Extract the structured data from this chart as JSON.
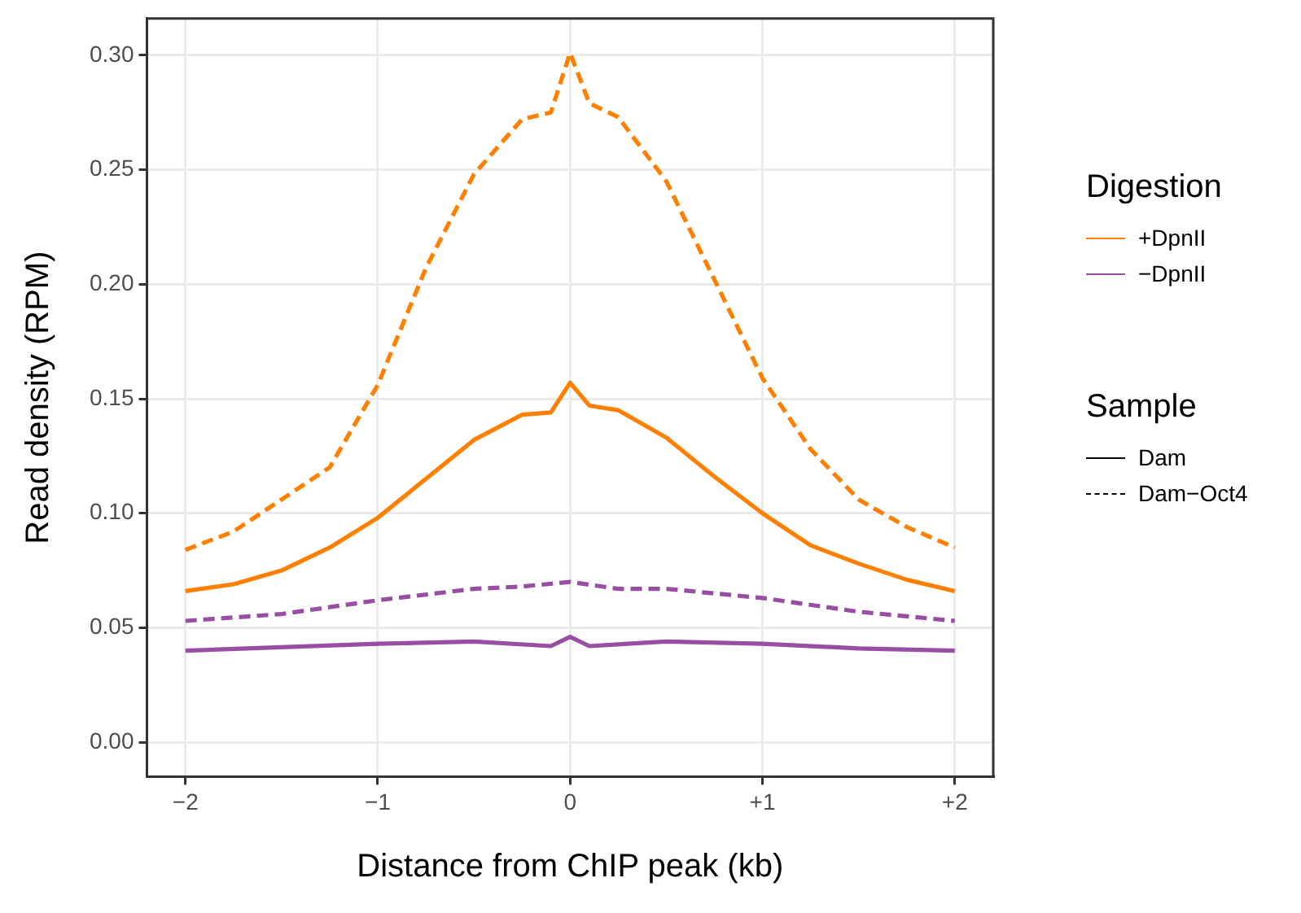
{
  "chart_data": {
    "type": "line",
    "xlabel": "Distance from ChIP peak (kb)",
    "ylabel": "Read density (RPM)",
    "legend_title": "Digestion",
    "xlim": [
      -2.2,
      2.2
    ],
    "xticks": [
      {
        "value": -2,
        "label": "−2"
      },
      {
        "value": -1,
        "label": "−1"
      },
      0,
      {
        "value": 1,
        "label": "+1"
      },
      {
        "value": 2,
        "label": "+2"
      }
    ],
    "ylim": [
      -0.015,
      0.316
    ],
    "yticks": [
      {
        "value": 0,
        "label": "0.00"
      },
      0.05,
      {
        "value": 0.1,
        "label": "0.10"
      },
      0.15,
      {
        "value": 0.2,
        "label": "0.20"
      },
      0.25,
      {
        "value": 0.3,
        "label": "0.30"
      }
    ],
    "grid": true,
    "legend": "right",
    "marker": "none",
    "annotations": [
      "Sample",
      "Dam",
      "Dam−Oct4"
    ],
    "series": [
      {
        "name": "+DpnII",
        "color": "#ff7f00",
        "line_style": "solid",
        "x": [
          -2,
          -1.75,
          -1.5,
          -1.25,
          -1,
          -0.75,
          -0.5,
          -0.25,
          -0.1,
          0,
          0.1,
          0.25,
          0.5,
          0.75,
          1,
          1.25,
          1.5,
          1.75,
          2
        ],
        "values": [
          0.066,
          0.069,
          0.075,
          0.085,
          0.098,
          0.115,
          0.132,
          0.143,
          0.144,
          0.157,
          0.147,
          0.145,
          0.133,
          0.116,
          0.1,
          0.086,
          0.078,
          0.071,
          0.066
        ]
      },
      {
        "color": "#ff7f00",
        "line_style": "dashed",
        "x": [
          -2,
          -1.75,
          -1.5,
          -1.25,
          -1,
          -0.75,
          -0.5,
          -0.25,
          -0.1,
          0,
          0.1,
          0.25,
          0.5,
          0.75,
          1,
          1.25,
          1.5,
          1.75,
          2
        ],
        "values": [
          0.084,
          0.092,
          0.106,
          0.12,
          0.156,
          0.207,
          0.248,
          0.272,
          0.275,
          0.301,
          0.279,
          0.273,
          0.245,
          0.202,
          0.159,
          0.128,
          0.106,
          0.094,
          0.085
        ]
      },
      {
        "name": "−DpnII",
        "color": "#984ea3",
        "line_style": "solid",
        "x": [
          -2,
          -1,
          -0.5,
          -0.1,
          0,
          0.1,
          0.5,
          1,
          1.5,
          2
        ],
        "values": [
          0.04,
          0.043,
          0.044,
          0.042,
          0.046,
          0.042,
          0.044,
          0.043,
          0.041,
          0.04
        ]
      },
      {
        "color": "#984ea3",
        "line_style": "dashed",
        "x": [
          -2,
          -1.5,
          -1,
          -0.5,
          -0.25,
          0,
          0.25,
          0.5,
          1,
          1.5,
          2
        ],
        "values": [
          0.053,
          0.056,
          0.062,
          0.067,
          0.068,
          0.07,
          0.067,
          0.067,
          0.063,
          0.057,
          0.053
        ]
      }
    ]
  }
}
